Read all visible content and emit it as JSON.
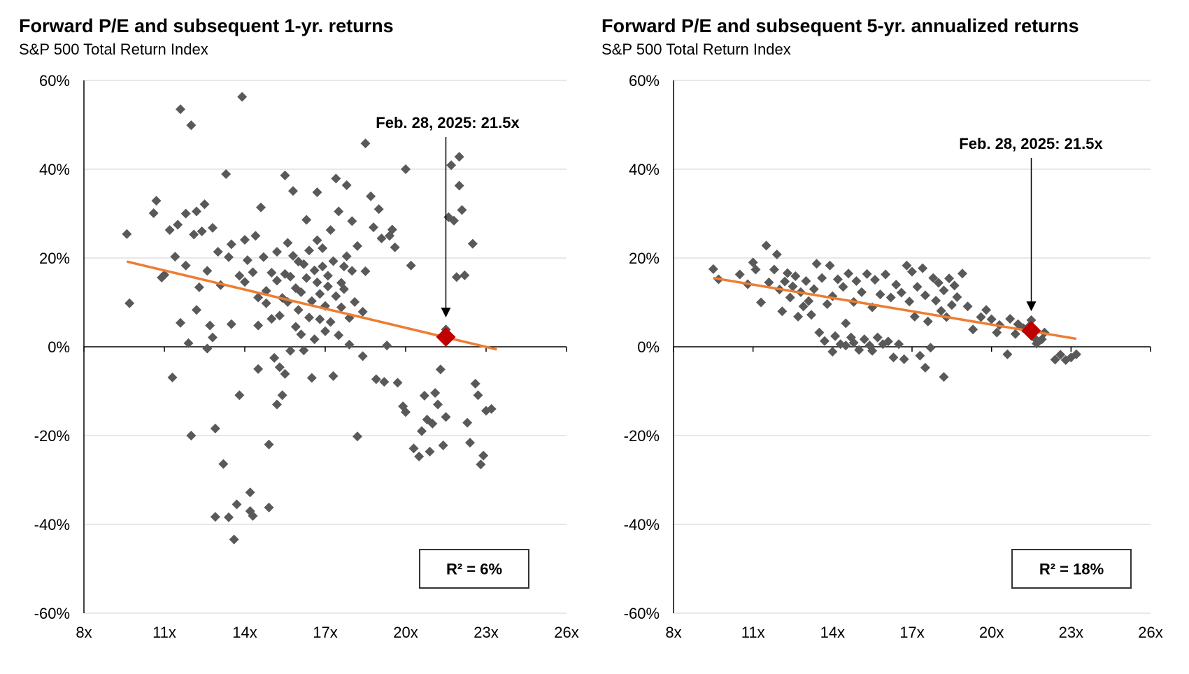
{
  "chart_data": [
    {
      "type": "scatter",
      "title": "Forward P/E and subsequent 1-yr. returns",
      "subtitle": "S&P 500 Total Return Index",
      "xlim": [
        8,
        26
      ],
      "ylim": [
        -60,
        60
      ],
      "x_ticks": [
        "8x",
        "11x",
        "14x",
        "17x",
        "20x",
        "23x",
        "26x"
      ],
      "y_ticks": [
        "60%",
        "40%",
        "20%",
        "0%",
        "-20%",
        "-40%",
        "-60%"
      ],
      "grid": true,
      "marker_color": "#595959",
      "trend_color": "#ED7D31",
      "highlight_color": "#C00000",
      "trendline": [
        [
          9.6,
          19.2
        ],
        [
          23.4,
          -0.6
        ]
      ],
      "highlight": {
        "x": 21.5,
        "y": 2.2,
        "label": "Feb. 28, 2025:  21.5x"
      },
      "r2_label": "R² = 6%",
      "points": [
        [
          9.6,
          25.4
        ],
        [
          9.7,
          9.8
        ],
        [
          10.6,
          30.1
        ],
        [
          10.7,
          32.9
        ],
        [
          10.9,
          15.6
        ],
        [
          11.0,
          16.2
        ],
        [
          11.2,
          26.3
        ],
        [
          11.4,
          20.3
        ],
        [
          11.3,
          -6.9
        ],
        [
          11.5,
          27.5
        ],
        [
          11.6,
          53.5
        ],
        [
          11.6,
          5.4
        ],
        [
          11.8,
          30.0
        ],
        [
          11.8,
          18.3
        ],
        [
          11.9,
          0.8
        ],
        [
          12.0,
          49.9
        ],
        [
          12.0,
          -20.0
        ],
        [
          12.1,
          25.3
        ],
        [
          12.2,
          30.5
        ],
        [
          12.2,
          8.3
        ],
        [
          12.3,
          13.4
        ],
        [
          12.4,
          26.0
        ],
        [
          12.5,
          32.1
        ],
        [
          12.6,
          17.1
        ],
        [
          12.6,
          -0.4
        ],
        [
          12.7,
          4.8
        ],
        [
          12.8,
          26.8
        ],
        [
          12.8,
          2.1
        ],
        [
          12.9,
          -18.4
        ],
        [
          12.9,
          -38.3
        ],
        [
          13.0,
          21.4
        ],
        [
          13.1,
          13.9
        ],
        [
          13.2,
          -26.4
        ],
        [
          13.3,
          38.9
        ],
        [
          13.4,
          20.2
        ],
        [
          13.4,
          -38.4
        ],
        [
          13.5,
          23.1
        ],
        [
          13.5,
          5.1
        ],
        [
          13.6,
          -43.4
        ],
        [
          13.7,
          -35.5
        ],
        [
          13.8,
          16.0
        ],
        [
          13.8,
          -10.9
        ],
        [
          13.9,
          56.3
        ],
        [
          14.0,
          24.1
        ],
        [
          14.0,
          14.6
        ],
        [
          14.1,
          19.5
        ],
        [
          14.2,
          -37.0
        ],
        [
          14.2,
          -32.8
        ],
        [
          14.3,
          16.8
        ],
        [
          14.3,
          -38.1
        ],
        [
          14.4,
          25.0
        ],
        [
          14.5,
          11.1
        ],
        [
          14.5,
          4.8
        ],
        [
          14.5,
          -5.0
        ],
        [
          14.6,
          31.4
        ],
        [
          14.7,
          20.2
        ],
        [
          14.8,
          12.6
        ],
        [
          14.8,
          9.8
        ],
        [
          14.9,
          -22.0
        ],
        [
          14.9,
          -36.2
        ],
        [
          15.0,
          16.7
        ],
        [
          15.0,
          6.3
        ],
        [
          15.1,
          -2.5
        ],
        [
          15.2,
          21.4
        ],
        [
          15.2,
          14.9
        ],
        [
          15.2,
          -13.0
        ],
        [
          15.3,
          7.0
        ],
        [
          15.3,
          -4.6
        ],
        [
          15.4,
          11.0
        ],
        [
          15.4,
          -10.9
        ],
        [
          15.5,
          38.6
        ],
        [
          15.5,
          16.4
        ],
        [
          15.5,
          -6.1
        ],
        [
          15.6,
          23.4
        ],
        [
          15.6,
          10.1
        ],
        [
          15.7,
          15.8
        ],
        [
          15.7,
          -0.9
        ],
        [
          15.8,
          20.5
        ],
        [
          15.8,
          35.1
        ],
        [
          15.9,
          13.2
        ],
        [
          15.9,
          4.5
        ],
        [
          16.0,
          19.2
        ],
        [
          16.0,
          8.3
        ],
        [
          16.1,
          2.8
        ],
        [
          16.1,
          12.3
        ],
        [
          16.2,
          18.6
        ],
        [
          16.2,
          -0.8
        ],
        [
          16.3,
          28.6
        ],
        [
          16.3,
          15.5
        ],
        [
          16.4,
          6.6
        ],
        [
          16.4,
          21.7
        ],
        [
          16.5,
          -7.0
        ],
        [
          16.5,
          10.3
        ],
        [
          16.6,
          17.2
        ],
        [
          16.6,
          1.7
        ],
        [
          16.7,
          34.8
        ],
        [
          16.7,
          24.0
        ],
        [
          16.7,
          14.5
        ],
        [
          16.8,
          6.2
        ],
        [
          16.8,
          11.9
        ],
        [
          16.9,
          18.1
        ],
        [
          16.9,
          22.2
        ],
        [
          17.0,
          9.2
        ],
        [
          17.0,
          3.5
        ],
        [
          17.1,
          13.6
        ],
        [
          17.1,
          16.0
        ],
        [
          17.2,
          26.3
        ],
        [
          17.2,
          5.6
        ],
        [
          17.3,
          -6.6
        ],
        [
          17.3,
          19.3
        ],
        [
          17.4,
          11.4
        ],
        [
          17.4,
          37.9
        ],
        [
          17.5,
          30.5
        ],
        [
          17.5,
          2.6
        ],
        [
          17.6,
          8.9
        ],
        [
          17.6,
          14.4
        ],
        [
          17.7,
          18.1
        ],
        [
          17.7,
          13.0
        ],
        [
          17.8,
          36.4
        ],
        [
          17.8,
          20.4
        ],
        [
          17.9,
          0.5
        ],
        [
          17.9,
          6.5
        ],
        [
          18.0,
          28.3
        ],
        [
          18.0,
          17.1
        ],
        [
          18.1,
          10.1
        ],
        [
          18.2,
          22.7
        ],
        [
          18.2,
          -20.2
        ],
        [
          18.4,
          7.9
        ],
        [
          18.5,
          45.8
        ],
        [
          18.5,
          17.0
        ],
        [
          18.4,
          -2.1
        ],
        [
          18.7,
          33.9
        ],
        [
          18.8,
          26.9
        ],
        [
          18.9,
          -7.3
        ],
        [
          19.0,
          31.0
        ],
        [
          19.1,
          24.4
        ],
        [
          19.2,
          -7.9
        ],
        [
          19.3,
          0.3
        ],
        [
          19.4,
          25.0
        ],
        [
          19.5,
          26.4
        ],
        [
          19.6,
          22.4
        ],
        [
          19.7,
          -8.1
        ],
        [
          19.9,
          -13.4
        ],
        [
          20.0,
          40.0
        ],
        [
          20.0,
          -14.7
        ],
        [
          20.2,
          18.3
        ],
        [
          20.3,
          -22.9
        ],
        [
          20.5,
          -24.7
        ],
        [
          20.6,
          -19.0
        ],
        [
          20.7,
          -11.0
        ],
        [
          20.8,
          -16.4
        ],
        [
          20.9,
          -23.6
        ],
        [
          21.0,
          -17.3
        ],
        [
          21.1,
          -10.4
        ],
        [
          21.2,
          -13.0
        ],
        [
          21.3,
          -5.1
        ],
        [
          21.4,
          -22.2
        ],
        [
          21.5,
          -15.8
        ],
        [
          21.5,
          3.9
        ],
        [
          21.6,
          29.2
        ],
        [
          21.7,
          40.9
        ],
        [
          21.8,
          28.4
        ],
        [
          21.9,
          15.7
        ],
        [
          22.0,
          42.8
        ],
        [
          22.0,
          36.3
        ],
        [
          22.1,
          30.8
        ],
        [
          22.2,
          16.1
        ],
        [
          22.3,
          -17.1
        ],
        [
          22.4,
          -21.6
        ],
        [
          22.5,
          23.2
        ],
        [
          22.6,
          -8.3
        ],
        [
          22.7,
          -10.9
        ],
        [
          22.8,
          -26.5
        ],
        [
          22.9,
          -24.5
        ],
        [
          23.0,
          -14.4
        ],
        [
          23.2,
          -14.0
        ]
      ]
    },
    {
      "type": "scatter",
      "title": "Forward P/E and subsequent 5-yr. annualized returns",
      "subtitle": "S&P 500 Total Return Index",
      "xlim": [
        8,
        26
      ],
      "ylim": [
        -60,
        60
      ],
      "x_ticks": [
        "8x",
        "11x",
        "14x",
        "17x",
        "20x",
        "23x",
        "26x"
      ],
      "y_ticks": [
        "60%",
        "40%",
        "20%",
        "0%",
        "-20%",
        "-40%",
        "-60%"
      ],
      "grid": true,
      "marker_color": "#595959",
      "trend_color": "#ED7D31",
      "highlight_color": "#C00000",
      "trendline": [
        [
          9.5,
          15.5
        ],
        [
          23.2,
          1.8
        ]
      ],
      "highlight": {
        "x": 21.5,
        "y": 3.6,
        "label": "Feb. 28, 2025:  21.5x"
      },
      "r2_label": "R² = 18%",
      "points": [
        [
          9.5,
          17.5
        ],
        [
          9.7,
          15.2
        ],
        [
          10.5,
          16.3
        ],
        [
          10.8,
          14.1
        ],
        [
          11.0,
          19.0
        ],
        [
          11.1,
          17.4
        ],
        [
          11.3,
          10.0
        ],
        [
          11.5,
          22.8
        ],
        [
          11.6,
          14.5
        ],
        [
          11.8,
          17.4
        ],
        [
          11.9,
          20.8
        ],
        [
          12.0,
          12.9
        ],
        [
          12.1,
          8.0
        ],
        [
          12.2,
          14.7
        ],
        [
          12.3,
          16.6
        ],
        [
          12.4,
          11.1
        ],
        [
          12.5,
          13.6
        ],
        [
          12.6,
          15.9
        ],
        [
          12.7,
          6.8
        ],
        [
          12.8,
          12.3
        ],
        [
          12.9,
          9.1
        ],
        [
          13.0,
          14.8
        ],
        [
          13.1,
          10.3
        ],
        [
          13.2,
          7.2
        ],
        [
          13.3,
          13.0
        ],
        [
          13.4,
          18.7
        ],
        [
          13.5,
          3.2
        ],
        [
          13.6,
          15.5
        ],
        [
          13.7,
          1.3
        ],
        [
          13.8,
          9.6
        ],
        [
          13.9,
          18.3
        ],
        [
          14.0,
          11.4
        ],
        [
          14.0,
          -1.1
        ],
        [
          14.1,
          2.4
        ],
        [
          14.2,
          15.2
        ],
        [
          14.3,
          0.6
        ],
        [
          14.4,
          13.5
        ],
        [
          14.5,
          5.3
        ],
        [
          14.5,
          0.3
        ],
        [
          14.6,
          16.5
        ],
        [
          14.7,
          2.1
        ],
        [
          14.8,
          10.1
        ],
        [
          14.8,
          0.9
        ],
        [
          14.9,
          14.8
        ],
        [
          15.0,
          -0.7
        ],
        [
          15.1,
          12.3
        ],
        [
          15.2,
          1.7
        ],
        [
          15.3,
          16.4
        ],
        [
          15.4,
          0.3
        ],
        [
          15.5,
          8.9
        ],
        [
          15.5,
          -0.9
        ],
        [
          15.6,
          15.1
        ],
        [
          15.7,
          2.1
        ],
        [
          15.8,
          11.8
        ],
        [
          15.9,
          0.6
        ],
        [
          16.0,
          16.3
        ],
        [
          16.1,
          1.2
        ],
        [
          16.2,
          11.1
        ],
        [
          16.3,
          -2.4
        ],
        [
          16.4,
          14.0
        ],
        [
          16.5,
          0.6
        ],
        [
          16.6,
          12.2
        ],
        [
          16.7,
          -2.8
        ],
        [
          16.8,
          18.3
        ],
        [
          16.9,
          10.2
        ],
        [
          17.0,
          16.9
        ],
        [
          17.1,
          6.8
        ],
        [
          17.2,
          13.5
        ],
        [
          17.3,
          -2.0
        ],
        [
          17.4,
          17.7
        ],
        [
          17.5,
          -4.7
        ],
        [
          17.5,
          11.6
        ],
        [
          17.6,
          5.7
        ],
        [
          17.7,
          -0.2
        ],
        [
          17.8,
          15.5
        ],
        [
          17.9,
          10.4
        ],
        [
          18.0,
          14.4
        ],
        [
          18.1,
          8.1
        ],
        [
          18.2,
          -6.8
        ],
        [
          18.2,
          12.7
        ],
        [
          18.3,
          6.7
        ],
        [
          18.4,
          15.4
        ],
        [
          18.5,
          9.4
        ],
        [
          18.6,
          13.8
        ],
        [
          18.7,
          11.2
        ],
        [
          18.9,
          16.5
        ],
        [
          19.1,
          9.1
        ],
        [
          19.3,
          3.9
        ],
        [
          19.6,
          6.7
        ],
        [
          19.8,
          8.3
        ],
        [
          20.0,
          6.2
        ],
        [
          20.2,
          3.2
        ],
        [
          20.3,
          4.9
        ],
        [
          20.6,
          -1.7
        ],
        [
          20.7,
          6.3
        ],
        [
          20.9,
          2.9
        ],
        [
          21.0,
          5.1
        ],
        [
          21.2,
          4.2
        ],
        [
          21.4,
          4.5
        ],
        [
          21.5,
          6.0
        ],
        [
          21.6,
          2.1
        ],
        [
          21.7,
          0.7
        ],
        [
          21.9,
          1.7
        ],
        [
          22.0,
          3.2
        ],
        [
          22.4,
          -2.9
        ],
        [
          22.6,
          -1.8
        ],
        [
          22.8,
          -3.0
        ],
        [
          23.0,
          -2.4
        ],
        [
          23.2,
          -1.7
        ]
      ]
    }
  ]
}
